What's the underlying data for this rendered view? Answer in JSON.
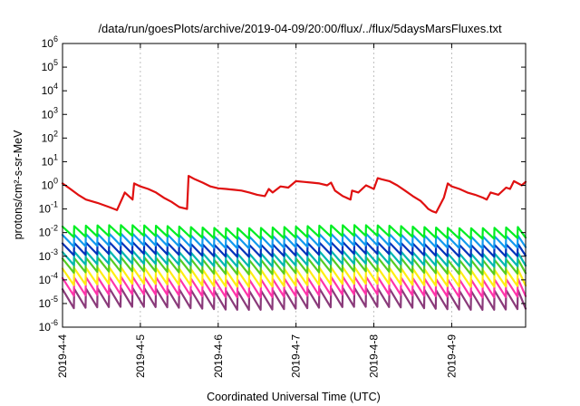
{
  "chart_data": {
    "type": "line",
    "title": "/data/run/goesPlots/archive/2019-04-09/20:00/flux/../flux/5daysMarsFluxes.txt",
    "xlabel": "Coordinated Universal Time (UTC)",
    "ylabel": "protons/cm²-s-sr-MeV",
    "y_scale": "log",
    "ylim": [
      1e-06,
      1000000.0
    ],
    "xlim": [
      0,
      5.95
    ],
    "x_ticks": [
      {
        "value": 0,
        "label": "2019-4-4"
      },
      {
        "value": 1,
        "label": "2019-4-5"
      },
      {
        "value": 2,
        "label": "2019-4-6"
      },
      {
        "value": 3,
        "label": "2019-4-7"
      },
      {
        "value": 4,
        "label": "2019-4-8"
      },
      {
        "value": 5,
        "label": "2019-4-9"
      }
    ],
    "y_ticks": [
      {
        "value": 1e-06,
        "mantissa": "10",
        "exponent": "-6"
      },
      {
        "value": 1e-05,
        "mantissa": "10",
        "exponent": "-5"
      },
      {
        "value": 0.0001,
        "mantissa": "10",
        "exponent": "-4"
      },
      {
        "value": 0.001,
        "mantissa": "10",
        "exponent": "-3"
      },
      {
        "value": 0.01,
        "mantissa": "10",
        "exponent": "-2"
      },
      {
        "value": 0.1,
        "mantissa": "10",
        "exponent": "-1"
      },
      {
        "value": 1,
        "mantissa": "10",
        "exponent": "0"
      },
      {
        "value": 10.0,
        "mantissa": "10",
        "exponent": "1"
      },
      {
        "value": 100.0,
        "mantissa": "10",
        "exponent": "2"
      },
      {
        "value": 1000.0,
        "mantissa": "10",
        "exponent": "3"
      },
      {
        "value": 10000.0,
        "mantissa": "10",
        "exponent": "4"
      },
      {
        "value": 100000.0,
        "mantissa": "10",
        "exponent": "5"
      },
      {
        "value": 1000000.0,
        "mantissa": "10",
        "exponent": "6"
      }
    ],
    "grid": true,
    "legend": "none",
    "series": [
      {
        "color": "#e01010",
        "x": [
          0,
          0.1,
          0.2,
          0.3,
          0.45,
          0.6,
          0.7,
          0.78,
          0.8,
          0.9,
          0.92,
          1.0,
          1.1,
          1.2,
          1.3,
          1.4,
          1.5,
          1.6,
          1.62,
          1.7,
          1.8,
          1.9,
          2.0,
          2.1,
          2.2,
          2.3,
          2.4,
          2.5,
          2.6,
          2.65,
          2.7,
          2.8,
          2.9,
          3.0,
          3.1,
          3.2,
          3.3,
          3.4,
          3.45,
          3.5,
          3.6,
          3.7,
          3.72,
          3.8,
          3.9,
          4.0,
          4.05,
          4.1,
          4.2,
          4.3,
          4.4,
          4.5,
          4.6,
          4.65,
          4.7,
          4.75,
          4.8,
          4.9,
          4.95,
          5.0,
          5.1,
          5.2,
          5.3,
          5.4,
          5.45,
          5.5,
          5.6,
          5.7,
          5.75,
          5.8,
          5.9,
          5.95
        ],
        "y": [
          1.2,
          0.7,
          0.4,
          0.25,
          0.18,
          0.12,
          0.09,
          0.35,
          0.5,
          0.25,
          1.2,
          0.9,
          0.7,
          0.5,
          0.3,
          0.2,
          0.12,
          0.1,
          2.5,
          1.8,
          1.3,
          0.9,
          0.75,
          0.7,
          0.65,
          0.6,
          0.5,
          0.4,
          0.35,
          0.7,
          0.5,
          0.9,
          0.8,
          1.5,
          1.4,
          1.3,
          1.2,
          1.0,
          1.3,
          0.6,
          0.35,
          0.25,
          0.6,
          0.5,
          1.0,
          0.7,
          2.0,
          1.8,
          1.5,
          1.0,
          0.6,
          0.35,
          0.22,
          0.15,
          0.1,
          0.08,
          0.07,
          0.3,
          1.2,
          0.9,
          0.7,
          0.5,
          0.4,
          0.3,
          0.25,
          0.5,
          0.4,
          0.8,
          0.7,
          1.5,
          1.0,
          1.4
        ]
      },
      {
        "color": "#00ee22",
        "base": 0.018,
        "depth": 0.45
      },
      {
        "color": "#1199ee",
        "base": 0.008,
        "depth": 0.5
      },
      {
        "color": "#0033bb",
        "base": 0.0035,
        "depth": 0.5
      },
      {
        "color": "#00b7b0",
        "base": 0.0015,
        "depth": 0.55
      },
      {
        "color": "#55cc22",
        "base": 0.0008,
        "depth": 0.6
      },
      {
        "color": "#ffee11",
        "base": 0.0003,
        "depth": 0.7
      },
      {
        "color": "#ff33aa",
        "base": 0.00012,
        "depth": 0.75
      },
      {
        "color": "#8a3a7a",
        "base": 4e-05,
        "depth": 0.8
      }
    ]
  }
}
